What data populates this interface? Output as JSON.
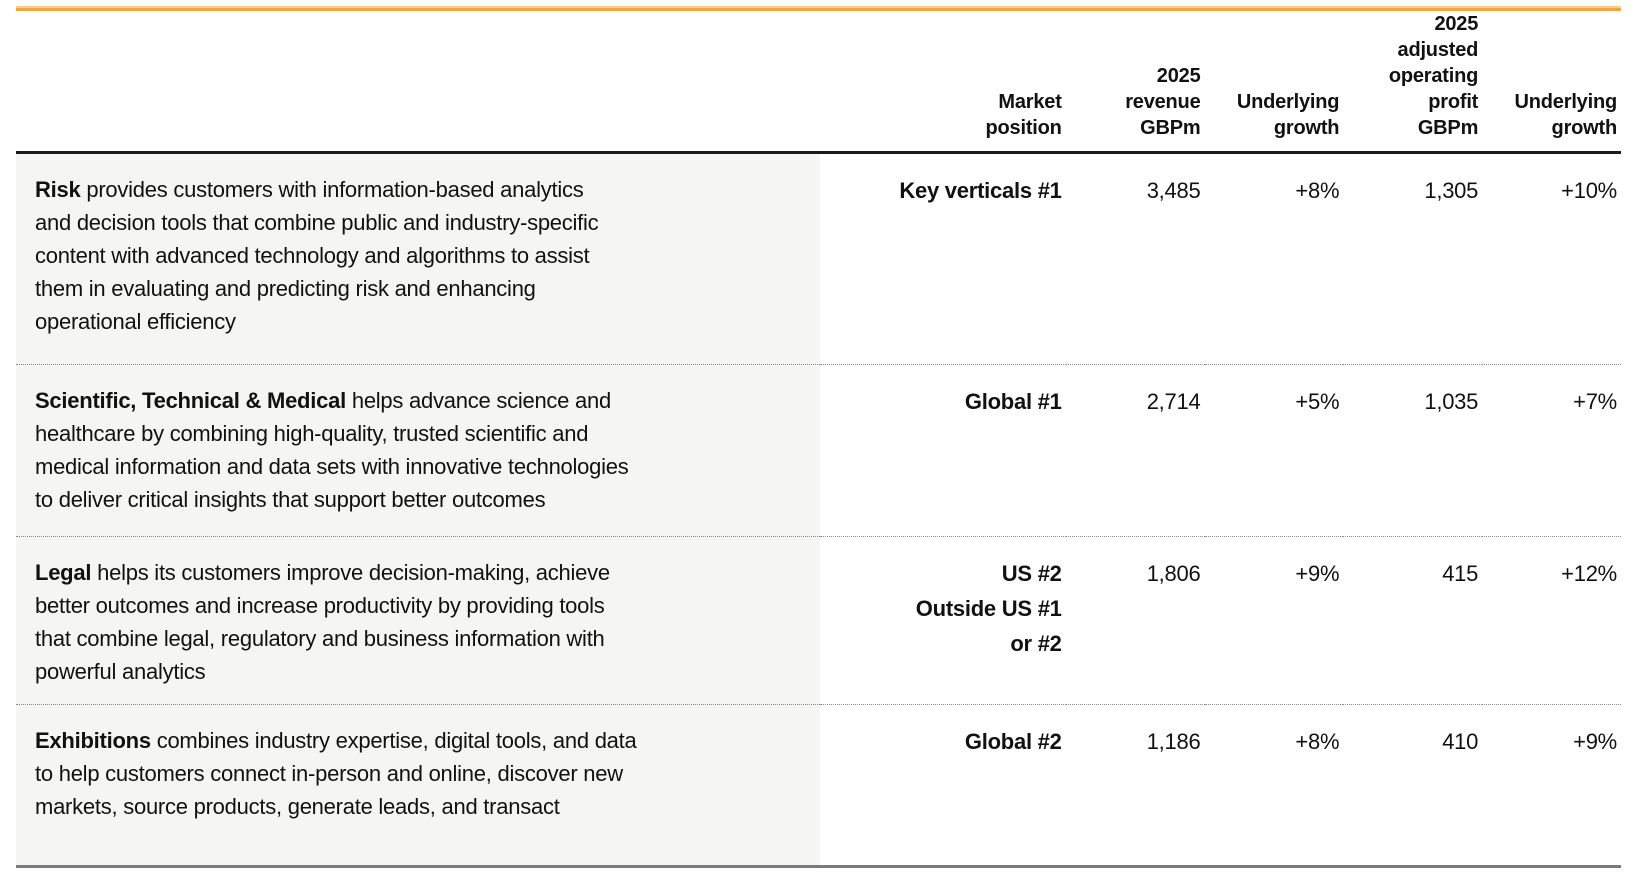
{
  "colors": {
    "top_rule_orange": "#F2A63E",
    "top_rule_light_orange": "#F8D096",
    "header_rule_black": "#1A1A1A",
    "bottom_rule_gray": "#7A7A7A",
    "description_column_bg": "#F5F5F3",
    "dotted_separator": "#8A8A8A",
    "text": "#111111"
  },
  "table": {
    "columns": [
      {
        "key": "description",
        "label": ""
      },
      {
        "key": "market_position",
        "label": "Market\nposition"
      },
      {
        "key": "revenue",
        "label": "2025\nrevenue\nGBPm"
      },
      {
        "key": "revenue_growth",
        "label": "Underlying\ngrowth"
      },
      {
        "key": "profit",
        "label": "2025\nadjusted\noperating\nprofit\nGBPm"
      },
      {
        "key": "profit_growth",
        "label": "Underlying\ngrowth"
      }
    ],
    "rows": [
      {
        "name": "Risk",
        "description": "provides customers with information-based analytics\nand decision tools that combine public and industry-specific\ncontent with advanced technology and algorithms to assist\nthem in evaluating and predicting risk and enhancing\noperational efficiency",
        "market_position": "Key verticals #1",
        "revenue": "3,485",
        "revenue_growth": "+8%",
        "profit": "1,305",
        "profit_growth": "+10%"
      },
      {
        "name": "Scientific, Technical & Medical",
        "description": "helps advance science and\nhealthcare by combining high-quality, trusted scientific and\nmedical information and data sets with innovative technologies\nto deliver critical insights that support better outcomes",
        "market_position": "Global #1",
        "revenue": "2,714",
        "revenue_growth": "+5%",
        "profit": "1,035",
        "profit_growth": "+7%"
      },
      {
        "name": "Legal",
        "description": "helps its customers improve decision-making, achieve\nbetter outcomes and increase productivity by providing tools\nthat combine legal, regulatory and business information with\npowerful analytics",
        "market_position": "US #2\nOutside US #1\nor #2",
        "revenue": "1,806",
        "revenue_growth": "+9%",
        "profit": "415",
        "profit_growth": "+12%"
      },
      {
        "name": "Exhibitions",
        "description": "combines industry expertise, digital tools, and data\nto help customers connect in-person and online, discover new\nmarkets, source products, generate leads, and transact",
        "market_position": "Global #2",
        "revenue": "1,186",
        "revenue_growth": "+8%",
        "profit": "410",
        "profit_growth": "+9%"
      }
    ]
  }
}
